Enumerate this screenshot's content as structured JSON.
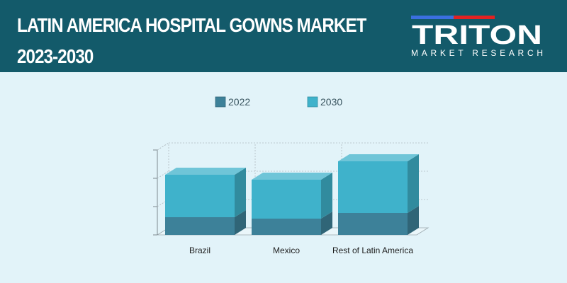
{
  "header": {
    "title_line1": "LATIN AMERICA HOSPITAL GOWNS MARKET",
    "title_line2": "2023-2030"
  },
  "logo": {
    "word": "TRITON",
    "tagline": "MARKET RESEARCH",
    "color_red": "#e32222",
    "color_blue": "#3b6fe0"
  },
  "chart_data": {
    "type": "bar",
    "stacked": true,
    "style": "3d",
    "categories": [
      "Brazil",
      "Mexico",
      "Rest of Latin America"
    ],
    "series": [
      {
        "name": "2022",
        "color": "#3d8199",
        "values": [
          25,
          23,
          31
        ]
      },
      {
        "name": "2030",
        "color": "#3fb2cb",
        "values": [
          60,
          55,
          73
        ]
      }
    ],
    "ylim": [
      0,
      120
    ],
    "legend_position": "top",
    "grid": true
  }
}
